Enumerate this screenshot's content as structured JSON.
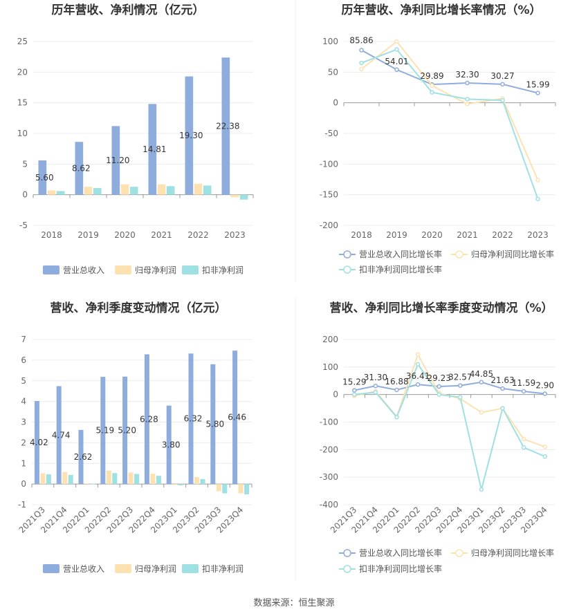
{
  "source_text": "数据来源：恒生聚源",
  "colors": {
    "revenue": "#8eacdc",
    "net_profit": "#fde1b0",
    "deducted_profit": "#9fe0e2",
    "grid": "#e9ecf2",
    "axis": "#999999"
  },
  "chart_data": [
    {
      "id": "annual-bars",
      "type": "bar",
      "title": "历年营收、净利情况（亿元）",
      "categories": [
        "2018",
        "2019",
        "2020",
        "2021",
        "2022",
        "2023"
      ],
      "ylim": [
        -5,
        25
      ],
      "yticks": [
        -5,
        0,
        5,
        10,
        15,
        20,
        25
      ],
      "grid": true,
      "legend_position": "bottom",
      "series": [
        {
          "name": "营业总收入",
          "values": [
            5.6,
            8.62,
            11.2,
            14.81,
            19.3,
            22.38
          ],
          "labels": [
            "5.60",
            "8.62",
            "11.20",
            "14.81",
            "19.30",
            "22.38"
          ]
        },
        {
          "name": "归母净利润",
          "values": [
            0.7,
            1.3,
            1.7,
            1.7,
            1.8,
            -0.4
          ]
        },
        {
          "name": "扣非净利润",
          "values": [
            0.6,
            1.1,
            1.3,
            1.4,
            1.5,
            -0.8
          ]
        }
      ]
    },
    {
      "id": "annual-growth",
      "type": "line",
      "title": "历年营收、净利同比增长率情况（%）",
      "categories": [
        "2018",
        "2019",
        "2020",
        "2021",
        "2022",
        "2023"
      ],
      "ylim": [
        -200,
        100
      ],
      "yticks": [
        -200,
        -150,
        -100,
        -50,
        0,
        50,
        100
      ],
      "grid": true,
      "legend_position": "bottom",
      "series": [
        {
          "name": "营业总收入同比增长率",
          "values": [
            85.86,
            54.01,
            29.89,
            32.3,
            30.27,
            15.99
          ],
          "labels": [
            "85.86",
            "54.01",
            "29.89",
            "32.30",
            "30.27",
            "15.99"
          ]
        },
        {
          "name": "归母净利润同比增长率",
          "values": [
            55,
            100,
            28,
            -2,
            7,
            -126
          ]
        },
        {
          "name": "扣非净利润同比增长率",
          "values": [
            65,
            87,
            17,
            6,
            4,
            -157
          ]
        }
      ]
    },
    {
      "id": "quarterly-bars",
      "type": "bar",
      "title": "营收、净利季度变动情况（亿元）",
      "categories": [
        "2021Q3",
        "2021Q4",
        "2022Q1",
        "2022Q2",
        "2022Q3",
        "2022Q4",
        "2023Q1",
        "2023Q2",
        "2023Q3",
        "2023Q4"
      ],
      "ylim": [
        -1,
        7
      ],
      "yticks": [
        -1,
        0,
        1,
        2,
        3,
        4,
        5,
        6,
        7
      ],
      "grid": true,
      "legend_position": "bottom",
      "series": [
        {
          "name": "营业总收入",
          "values": [
            4.02,
            4.74,
            2.62,
            5.19,
            5.2,
            6.28,
            3.8,
            6.32,
            5.8,
            6.46
          ],
          "labels": [
            "4.02",
            "4.74",
            "2.62",
            "5.19",
            "5.20",
            "6.28",
            "3.80",
            "6.32",
            "5.80",
            "6.46"
          ]
        },
        {
          "name": "归母净利润",
          "values": [
            0.52,
            0.58,
            0.03,
            0.65,
            0.56,
            0.5,
            -0.02,
            0.34,
            -0.35,
            -0.45
          ]
        },
        {
          "name": "扣非净利润",
          "values": [
            0.47,
            0.44,
            0.02,
            0.53,
            0.49,
            0.4,
            -0.06,
            0.24,
            -0.45,
            -0.5
          ]
        }
      ]
    },
    {
      "id": "quarterly-growth",
      "type": "line",
      "title": "营收、净利同比增长率季度变动情况（%）",
      "categories": [
        "2021Q3",
        "2021Q4",
        "2022Q1",
        "2022Q2",
        "2022Q3",
        "2022Q4",
        "2023Q1",
        "2023Q2",
        "2023Q3",
        "2023Q4"
      ],
      "ylim": [
        -400,
        200
      ],
      "yticks": [
        -400,
        -300,
        -200,
        -100,
        0,
        100,
        200
      ],
      "grid": true,
      "legend_position": "bottom",
      "series": [
        {
          "name": "营业总收入同比增长率",
          "values": [
            15.29,
            31.3,
            16.88,
            36.41,
            29.23,
            32.57,
            44.85,
            21.63,
            11.59,
            2.9
          ],
          "labels": [
            "15.29",
            "31.30",
            "16.88",
            "36.41",
            "29.23",
            "32.57",
            "44.85",
            "21.63",
            "11.59",
            "2.90"
          ]
        },
        {
          "name": "归母净利润同比增长率",
          "values": [
            -5,
            12,
            -80,
            145,
            5,
            -15,
            -65,
            -50,
            -162,
            -190
          ]
        },
        {
          "name": "扣非净利润同比增长率",
          "values": [
            0,
            8,
            -82,
            110,
            0,
            -10,
            -345,
            -50,
            -192,
            -225
          ]
        }
      ]
    }
  ]
}
